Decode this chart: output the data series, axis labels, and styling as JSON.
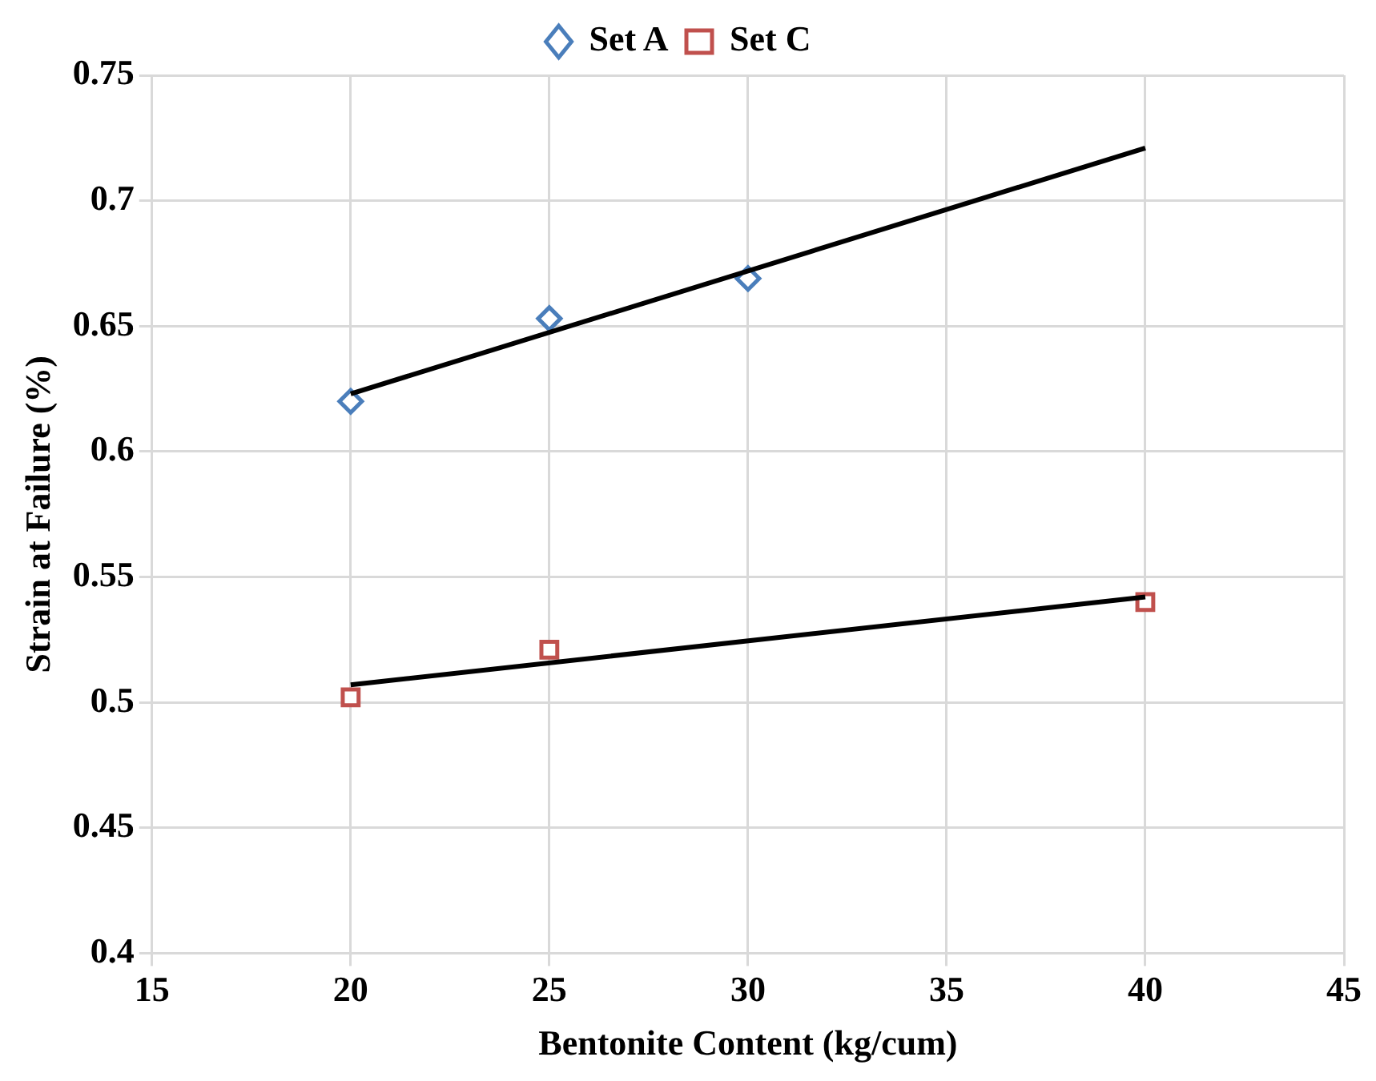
{
  "chart_data": {
    "type": "scatter",
    "xlabel": "Bentonite Content (kg/cum)",
    "ylabel": "Strain at Failure (%)",
    "xlim": [
      15,
      45
    ],
    "xticks": [
      15,
      20,
      25,
      30,
      35,
      40,
      45
    ],
    "ylim": [
      0.4,
      0.75
    ],
    "yticks": [
      0.4,
      0.45,
      0.5,
      0.55,
      0.6,
      0.65,
      0.7,
      0.75
    ],
    "grid": true,
    "legend": "top",
    "series": [
      {
        "name": "Set A",
        "type": "scatter",
        "marker": "diamond",
        "color": "#4a7ebb",
        "x": [
          20,
          25,
          30
        ],
        "values": [
          0.62,
          0.653,
          0.669
        ]
      },
      {
        "name": "Set C",
        "type": "scatter",
        "marker": "square",
        "color": "#c0504d",
        "x": [
          20,
          25,
          40
        ],
        "values": [
          0.502,
          0.521,
          0.54
        ]
      },
      {
        "type": "line",
        "marker": "none",
        "color": "#000000",
        "x": [
          20,
          40
        ],
        "values": [
          0.623,
          0.721
        ]
      },
      {
        "type": "line",
        "marker": "none",
        "color": "#000000",
        "x": [
          20,
          40
        ],
        "values": [
          0.507,
          0.542
        ]
      }
    ]
  }
}
